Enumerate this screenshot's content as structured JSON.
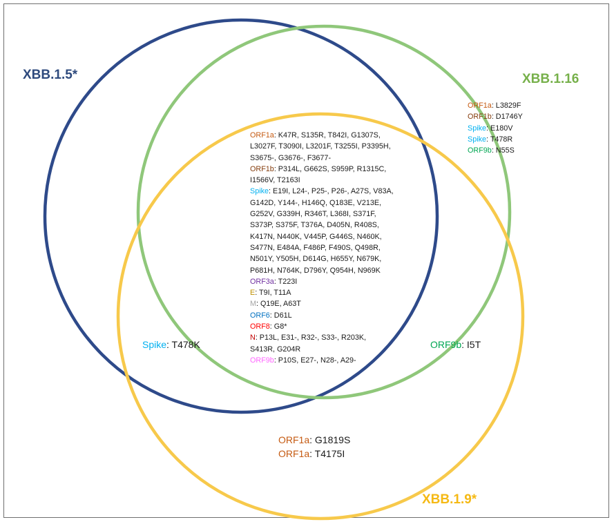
{
  "sets": [
    {
      "id": "xbb15",
      "label": "XBB.1.5*",
      "color": "#2e4a8a"
    },
    {
      "id": "xbb116",
      "label": "XBB.1.16",
      "color": "#8fc77a"
    },
    {
      "id": "xbb19",
      "label": "XBB.1.9*",
      "color": "#f7c94b"
    }
  ],
  "label_colors": {
    "xbb15": "#2e4a7d",
    "xbb116": "#76b04a",
    "xbb19": "#f5b914"
  },
  "gene_colors": {
    "ORF1a": "#c55a11",
    "ORF1b": "#843c0c",
    "Spike": "#00b0f0",
    "ORF9b_green": "#00a652",
    "ORF3a": "#7030a0",
    "E": "#bf9000",
    "M": "#a5a5a5",
    "ORF6": "#0070c0",
    "ORF8": "#ff0000",
    "N": "#c00000",
    "ORF9b_pink": "#ff66ff"
  },
  "regions": {
    "xbb116_only": [
      {
        "gene": "ORF1a",
        "color_key": "ORF1a",
        "text": ": L3829F"
      },
      {
        "gene": "ORF1b",
        "color_key": "ORF1b",
        "text": ": D1746Y"
      },
      {
        "gene": "Spike",
        "color_key": "Spike",
        "text": ": E180V"
      },
      {
        "gene": "Spike",
        "color_key": "Spike",
        "text": ": T478R"
      },
      {
        "gene": "ORF9b",
        "color_key": "ORF9b_green",
        "text": ": N55S"
      }
    ],
    "center": [
      {
        "gene": "ORF1a",
        "color_key": "ORF1a",
        "text": ": K47R, S135R, T842I, G1307S,"
      },
      {
        "gene": "",
        "color_key": "",
        "text": "L3027F, T3090I, L3201F, T3255I, P3395H,"
      },
      {
        "gene": "",
        "color_key": "",
        "text": "S3675-, G3676-, F3677-"
      },
      {
        "gene": "ORF1b",
        "color_key": "ORF1b",
        "text": ": P314L, G662S, S959P, R1315C,"
      },
      {
        "gene": "",
        "color_key": "",
        "text": "I1566V, T2163I"
      },
      {
        "gene": "Spike",
        "color_key": "Spike",
        "text": ": E19I, L24-, P25-, P26-, A27S, V83A,"
      },
      {
        "gene": "",
        "color_key": "",
        "text": "G142D, Y144-, H146Q, Q183E, V213E,"
      },
      {
        "gene": "",
        "color_key": "",
        "text": "G252V, G339H, R346T, L368I, S371F,"
      },
      {
        "gene": "",
        "color_key": "",
        "text": "S373P, S375F, T376A, D405N, R408S,"
      },
      {
        "gene": "",
        "color_key": "",
        "text": "K417N, N440K, V445P, G446S, N460K,"
      },
      {
        "gene": "",
        "color_key": "",
        "text": "S477N, E484A, F486P, F490S, Q498R,"
      },
      {
        "gene": "",
        "color_key": "",
        "text": "N501Y, Y505H, D614G, H655Y, N679K,"
      },
      {
        "gene": "",
        "color_key": "",
        "text": "P681H, N764K, D796Y, Q954H, N969K"
      },
      {
        "gene": "ORF3a",
        "color_key": "ORF3a",
        "text": ": T223I"
      },
      {
        "gene": "E",
        "color_key": "E",
        "text": ": T9I, T11A"
      },
      {
        "gene": "M",
        "color_key": "M",
        "text": ": Q19E, A63T"
      },
      {
        "gene": "ORF6",
        "color_key": "ORF6",
        "text": ": D61L"
      },
      {
        "gene": "ORF8",
        "color_key": "ORF8",
        "text": ": G8*"
      },
      {
        "gene": "N",
        "color_key": "N",
        "text": ": P13L, E31-, R32-, S33-, R203K,"
      },
      {
        "gene": "",
        "color_key": "",
        "text": "S413R, G204R"
      },
      {
        "gene": "ORF9b",
        "color_key": "ORF9b_pink",
        "text": ": P10S, E27-, N28-, A29-"
      }
    ],
    "xbb15_xbb19": [
      {
        "gene": "Spike",
        "color_key": "Spike",
        "text": ": T478K"
      }
    ],
    "xbb116_xbb19": [
      {
        "gene": "ORF9b",
        "color_key": "ORF9b_green",
        "text": ": I5T"
      }
    ],
    "xbb19_only": [
      {
        "gene": "ORF1a",
        "color_key": "ORF1a",
        "text": ": G1819S"
      },
      {
        "gene": "ORF1a",
        "color_key": "ORF1a",
        "text": ": T4175I"
      }
    ]
  }
}
